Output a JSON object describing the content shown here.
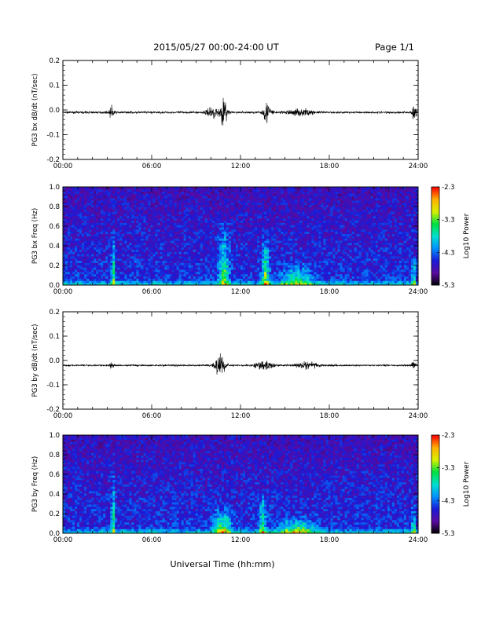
{
  "header": {
    "title": "2015/05/27  00:00-24:00 UT",
    "page": "Page 1/1"
  },
  "xlabel": "Universal Time (hh:mm)",
  "colors": {
    "trace": "#000000",
    "colormap": [
      "#000000",
      "#5a0aa0",
      "#1a1ad8",
      "#0090ff",
      "#00e0d0",
      "#00e040",
      "#d8f000",
      "#ffb000",
      "#ff0000"
    ]
  },
  "chart_data": [
    {
      "type": "line",
      "ylabel": "PG3 bx dB/dt (nT/sec)",
      "xlim": [
        0,
        24
      ],
      "ylim": [
        -0.2,
        0.2
      ],
      "xticks": [
        "00:00",
        "06:00",
        "12:00",
        "18:00",
        "24:00"
      ],
      "yticks": [
        "-0.2",
        "-0.1",
        "0.0",
        "0.1",
        "0.2"
      ],
      "baseline": -0.01,
      "noise_amplitude": 0.004,
      "bursts": [
        {
          "time": 3.3,
          "amplitude": 0.025,
          "width": 0.2
        },
        {
          "time": 10.2,
          "amplitude": 0.02,
          "width": 0.7
        },
        {
          "time": 10.9,
          "amplitude": 0.05,
          "width": 0.3
        },
        {
          "time": 13.8,
          "amplitude": 0.04,
          "width": 0.4
        },
        {
          "time": 16.0,
          "amplitude": 0.012,
          "width": 1.2
        },
        {
          "time": 23.7,
          "amplitude": 0.035,
          "width": 0.2
        }
      ]
    },
    {
      "type": "heatmap",
      "ylabel": "PG3 bx Freq (Hz)",
      "colorbar_label": "Log10 Power",
      "xlim": [
        0,
        24
      ],
      "ylim": [
        0,
        1.0
      ],
      "clim": [
        -5.3,
        -2.3
      ],
      "xticks": [
        "00:00",
        "06:00",
        "12:00",
        "18:00",
        "24:00"
      ],
      "yticks": [
        "0.0",
        "0.2",
        "0.4",
        "0.6",
        "0.8",
        "1.0"
      ],
      "cticks": [
        "-2.3",
        "-3.3",
        "-4.3",
        "-5.3"
      ],
      "background_level": -4.5,
      "enhancements": [
        {
          "time": 3.4,
          "width": 0.15,
          "fmax": 0.6,
          "level": -3.6
        },
        {
          "time": 10.9,
          "width": 0.5,
          "fmax": 0.7,
          "level": -3.8
        },
        {
          "time": 13.7,
          "width": 0.35,
          "fmax": 0.55,
          "level": -3.5
        },
        {
          "time": 15.8,
          "width": 1.5,
          "fmax": 0.25,
          "level": -3.9
        },
        {
          "time": 23.7,
          "width": 0.15,
          "fmax": 0.3,
          "level": -3.6
        }
      ]
    },
    {
      "type": "line",
      "ylabel": "PG3 by dB/dt (nT/sec)",
      "xlim": [
        0,
        24
      ],
      "ylim": [
        -0.2,
        0.2
      ],
      "xticks": [
        "00:00",
        "06:00",
        "12:00",
        "18:00",
        "24:00"
      ],
      "yticks": [
        "-0.2",
        "-0.1",
        "0.0",
        "0.1",
        "0.2"
      ],
      "baseline": -0.02,
      "noise_amplitude": 0.003,
      "bursts": [
        {
          "time": 3.3,
          "amplitude": 0.015,
          "width": 0.2
        },
        {
          "time": 10.6,
          "amplitude": 0.04,
          "width": 0.5
        },
        {
          "time": 13.6,
          "amplitude": 0.02,
          "width": 0.8
        },
        {
          "time": 16.5,
          "amplitude": 0.012,
          "width": 1.0
        },
        {
          "time": 23.7,
          "amplitude": 0.015,
          "width": 0.2
        }
      ]
    },
    {
      "type": "heatmap",
      "ylabel": "PG3 by Freq (Hz)",
      "colorbar_label": "Log10 Power",
      "xlim": [
        0,
        24
      ],
      "ylim": [
        0,
        1.0
      ],
      "clim": [
        -5.3,
        -2.3
      ],
      "xticks": [
        "00:00",
        "06:00",
        "12:00",
        "18:00",
        "24:00"
      ],
      "yticks": [
        "0.0",
        "0.2",
        "0.4",
        "0.6",
        "0.8",
        "1.0"
      ],
      "cticks": [
        "-2.3",
        "-3.3",
        "-4.3",
        "-5.3"
      ],
      "background_level": -4.5,
      "enhancements": [
        {
          "time": 3.4,
          "width": 0.15,
          "fmax": 0.7,
          "level": -3.6
        },
        {
          "time": 10.8,
          "width": 0.8,
          "fmax": 0.3,
          "level": -3.6
        },
        {
          "time": 13.5,
          "width": 0.3,
          "fmax": 0.45,
          "level": -3.6
        },
        {
          "time": 15.8,
          "width": 1.6,
          "fmax": 0.2,
          "level": -3.8
        },
        {
          "time": 23.7,
          "width": 0.15,
          "fmax": 0.3,
          "level": -3.6
        }
      ]
    }
  ]
}
